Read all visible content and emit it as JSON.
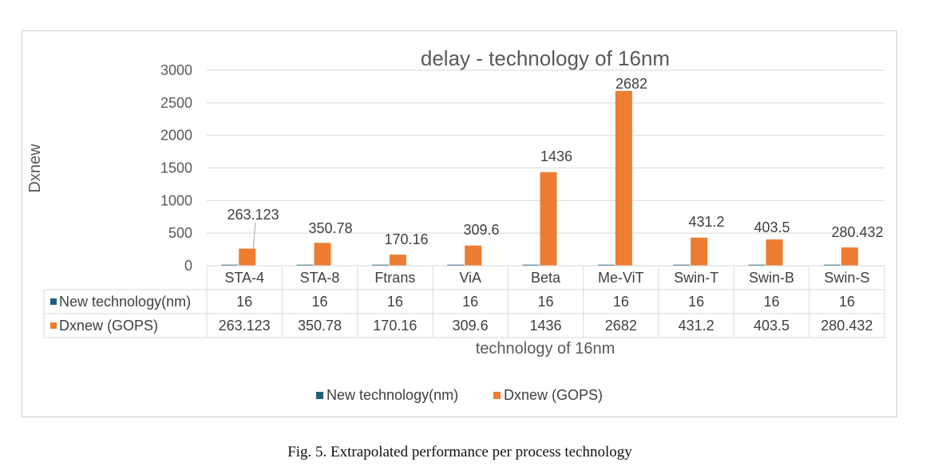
{
  "chart_data": {
    "type": "bar",
    "title": "delay - technology of 16nm",
    "xlabel": "technology of 16nm",
    "ylabel": "Dxnew",
    "ylim": [
      0,
      3000
    ],
    "yticks": [
      0,
      500,
      1000,
      1500,
      2000,
      2500,
      3000
    ],
    "grid": true,
    "legend": "bottom",
    "categories": [
      "STA-4",
      "STA-8",
      "Ftrans",
      "ViA",
      "Beta",
      "Me-ViT",
      "Swin-T",
      "Swin-B",
      "Swin-S"
    ],
    "series": [
      {
        "name": "New technology(nm)",
        "color": "#1f5f7a",
        "values": [
          16,
          16,
          16,
          16,
          16,
          16,
          16,
          16,
          16
        ],
        "labels": [
          "16",
          "16",
          "16",
          "16",
          "16",
          "16",
          "16",
          "16",
          "16"
        ]
      },
      {
        "name": "Dxnew (GOPS)",
        "color": "#ed7d31",
        "values": [
          263.123,
          350.78,
          170.16,
          309.6,
          1436,
          2682,
          431.2,
          403.5,
          280.432
        ],
        "labels": [
          "263.123",
          "350.78",
          "170.16",
          "309.6",
          "1436",
          "2682",
          "431.2",
          "403.5",
          "280.432"
        ]
      }
    ]
  },
  "caption": "Fig. 5.  Extrapolated performance per process technology"
}
